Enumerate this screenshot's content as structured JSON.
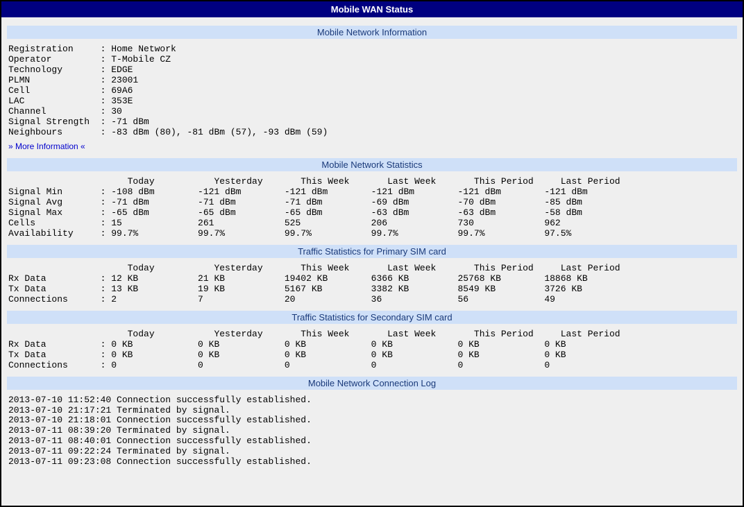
{
  "colors": {
    "header_bg": "#000080",
    "header_text": "#ffffff",
    "section_bg": "#cfe0f8",
    "section_text": "#1a3a7a",
    "page_bg": "#efefef",
    "link": "#0000cc",
    "border": "#000000",
    "mono_text": "#000000"
  },
  "typography": {
    "title_font": "Verdana",
    "title_size_pt": 10,
    "mono_font": "Courier New",
    "mono_size_pt": 10
  },
  "layout": {
    "kv_label_width": 17,
    "stats_label_width": 17,
    "stats_col_width": 16,
    "stats_first_col_width": 16,
    "stats_header_pad": 22
  },
  "header": {
    "title": "Mobile WAN Status"
  },
  "sections": {
    "network_info": "Mobile Network Information",
    "network_stats": "Mobile Network Statistics",
    "traffic_primary": "Traffic Statistics for Primary SIM card",
    "traffic_secondary": "Traffic Statistics for Secondary SIM card",
    "connection_log": "Mobile Network Connection Log"
  },
  "network_info": {
    "rows": [
      {
        "label": "Registration",
        "value": "Home Network"
      },
      {
        "label": "Operator",
        "value": "T-Mobile CZ"
      },
      {
        "label": "Technology",
        "value": "EDGE"
      },
      {
        "label": "PLMN",
        "value": "23001"
      },
      {
        "label": "Cell",
        "value": "69A6"
      },
      {
        "label": "LAC",
        "value": "353E"
      },
      {
        "label": "Channel",
        "value": "30"
      },
      {
        "label": "Signal Strength",
        "value": "-71 dBm"
      },
      {
        "label": "Neighbours",
        "value": "-83 dBm (80), -81 dBm (57), -93 dBm (59)"
      }
    ],
    "more_link": "» More Information «"
  },
  "stats_columns": [
    "Today",
    "Yesterday",
    "This Week",
    "Last Week",
    "This Period",
    "Last Period"
  ],
  "network_stats": {
    "rows": [
      {
        "label": "Signal Min",
        "values": [
          "-108 dBm",
          "-121 dBm",
          "-121 dBm",
          "-121 dBm",
          "-121 dBm",
          "-121 dBm"
        ]
      },
      {
        "label": "Signal Avg",
        "values": [
          "-71 dBm",
          "-71 dBm",
          "-71 dBm",
          "-69 dBm",
          "-70 dBm",
          "-85 dBm"
        ]
      },
      {
        "label": "Signal Max",
        "values": [
          "-65 dBm",
          "-65 dBm",
          "-65 dBm",
          "-63 dBm",
          "-63 dBm",
          "-58 dBm"
        ]
      },
      {
        "label": "Cells",
        "values": [
          "15",
          "261",
          "525",
          "206",
          "730",
          "962"
        ]
      },
      {
        "label": "Availability",
        "values": [
          "99.7%",
          "99.7%",
          "99.7%",
          "99.7%",
          "99.7%",
          "97.5%"
        ]
      }
    ]
  },
  "traffic_primary": {
    "rows": [
      {
        "label": "Rx Data",
        "values": [
          "12 KB",
          "21 KB",
          "19402 KB",
          "6366 KB",
          "25768 KB",
          "18868 KB"
        ]
      },
      {
        "label": "Tx Data",
        "values": [
          "13 KB",
          "19 KB",
          "5167 KB",
          "3382 KB",
          "8549 KB",
          "3726 KB"
        ]
      },
      {
        "label": "Connections",
        "values": [
          "2",
          "7",
          "20",
          "36",
          "56",
          "49"
        ]
      }
    ]
  },
  "traffic_secondary": {
    "rows": [
      {
        "label": "Rx Data",
        "values": [
          "0 KB",
          "0 KB",
          "0 KB",
          "0 KB",
          "0 KB",
          "0 KB"
        ]
      },
      {
        "label": "Tx Data",
        "values": [
          "0 KB",
          "0 KB",
          "0 KB",
          "0 KB",
          "0 KB",
          "0 KB"
        ]
      },
      {
        "label": "Connections",
        "values": [
          "0",
          "0",
          "0",
          "0",
          "0",
          "0"
        ]
      }
    ]
  },
  "connection_log": {
    "entries": [
      "2013-07-10 11:52:40 Connection successfully established.",
      "2013-07-10 21:17:21 Terminated by signal.",
      "2013-07-10 21:18:01 Connection successfully established.",
      "2013-07-11 08:39:20 Terminated by signal.",
      "2013-07-11 08:40:01 Connection successfully established.",
      "2013-07-11 09:22:24 Terminated by signal.",
      "2013-07-11 09:23:08 Connection successfully established."
    ]
  }
}
